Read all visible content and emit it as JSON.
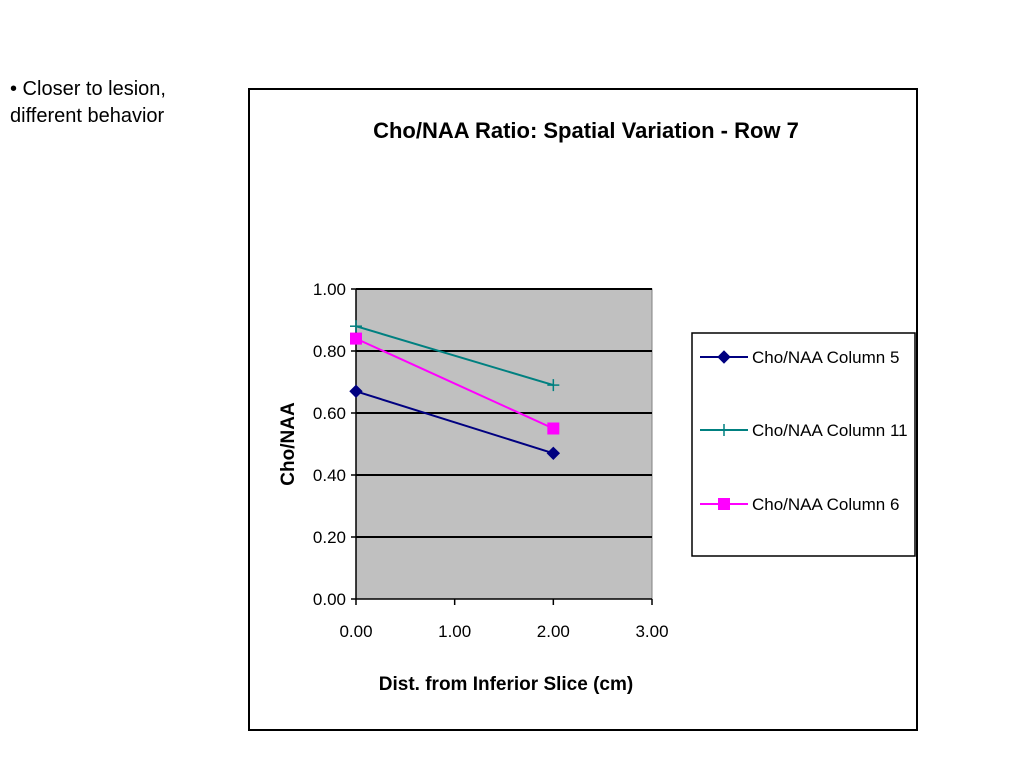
{
  "slide": {
    "bullet_lines": [
      "• Closer to lesion,",
      "different behavior"
    ]
  },
  "chart_data": {
    "type": "line",
    "title": "Cho/NAA Ratio: Spatial Variation - Row 7",
    "xlabel": "Dist. from Inferior Slice (cm)",
    "ylabel": "Cho/NAA",
    "xlim": [
      0,
      3
    ],
    "ylim": [
      0,
      1
    ],
    "x_ticks": [
      "0.00",
      "1.00",
      "2.00",
      "3.00"
    ],
    "y_ticks": [
      "0.00",
      "0.20",
      "0.40",
      "0.60",
      "0.80",
      "1.00"
    ],
    "grid": "horizontal",
    "plot_background": "#c0c0c0",
    "legend_position": "right",
    "series": [
      {
        "name": "Cho/NAA Column 5",
        "color": "#000080",
        "marker": "diamond",
        "x": [
          0,
          2
        ],
        "y": [
          0.67,
          0.47
        ]
      },
      {
        "name": "Cho/NAA Column 11",
        "color": "#008080",
        "marker": "plus",
        "x": [
          0,
          2
        ],
        "y": [
          0.88,
          0.69
        ]
      },
      {
        "name": "Cho/NAA Column 6",
        "color": "#ff00ff",
        "marker": "square",
        "x": [
          0,
          2
        ],
        "y": [
          0.84,
          0.55
        ]
      }
    ]
  }
}
